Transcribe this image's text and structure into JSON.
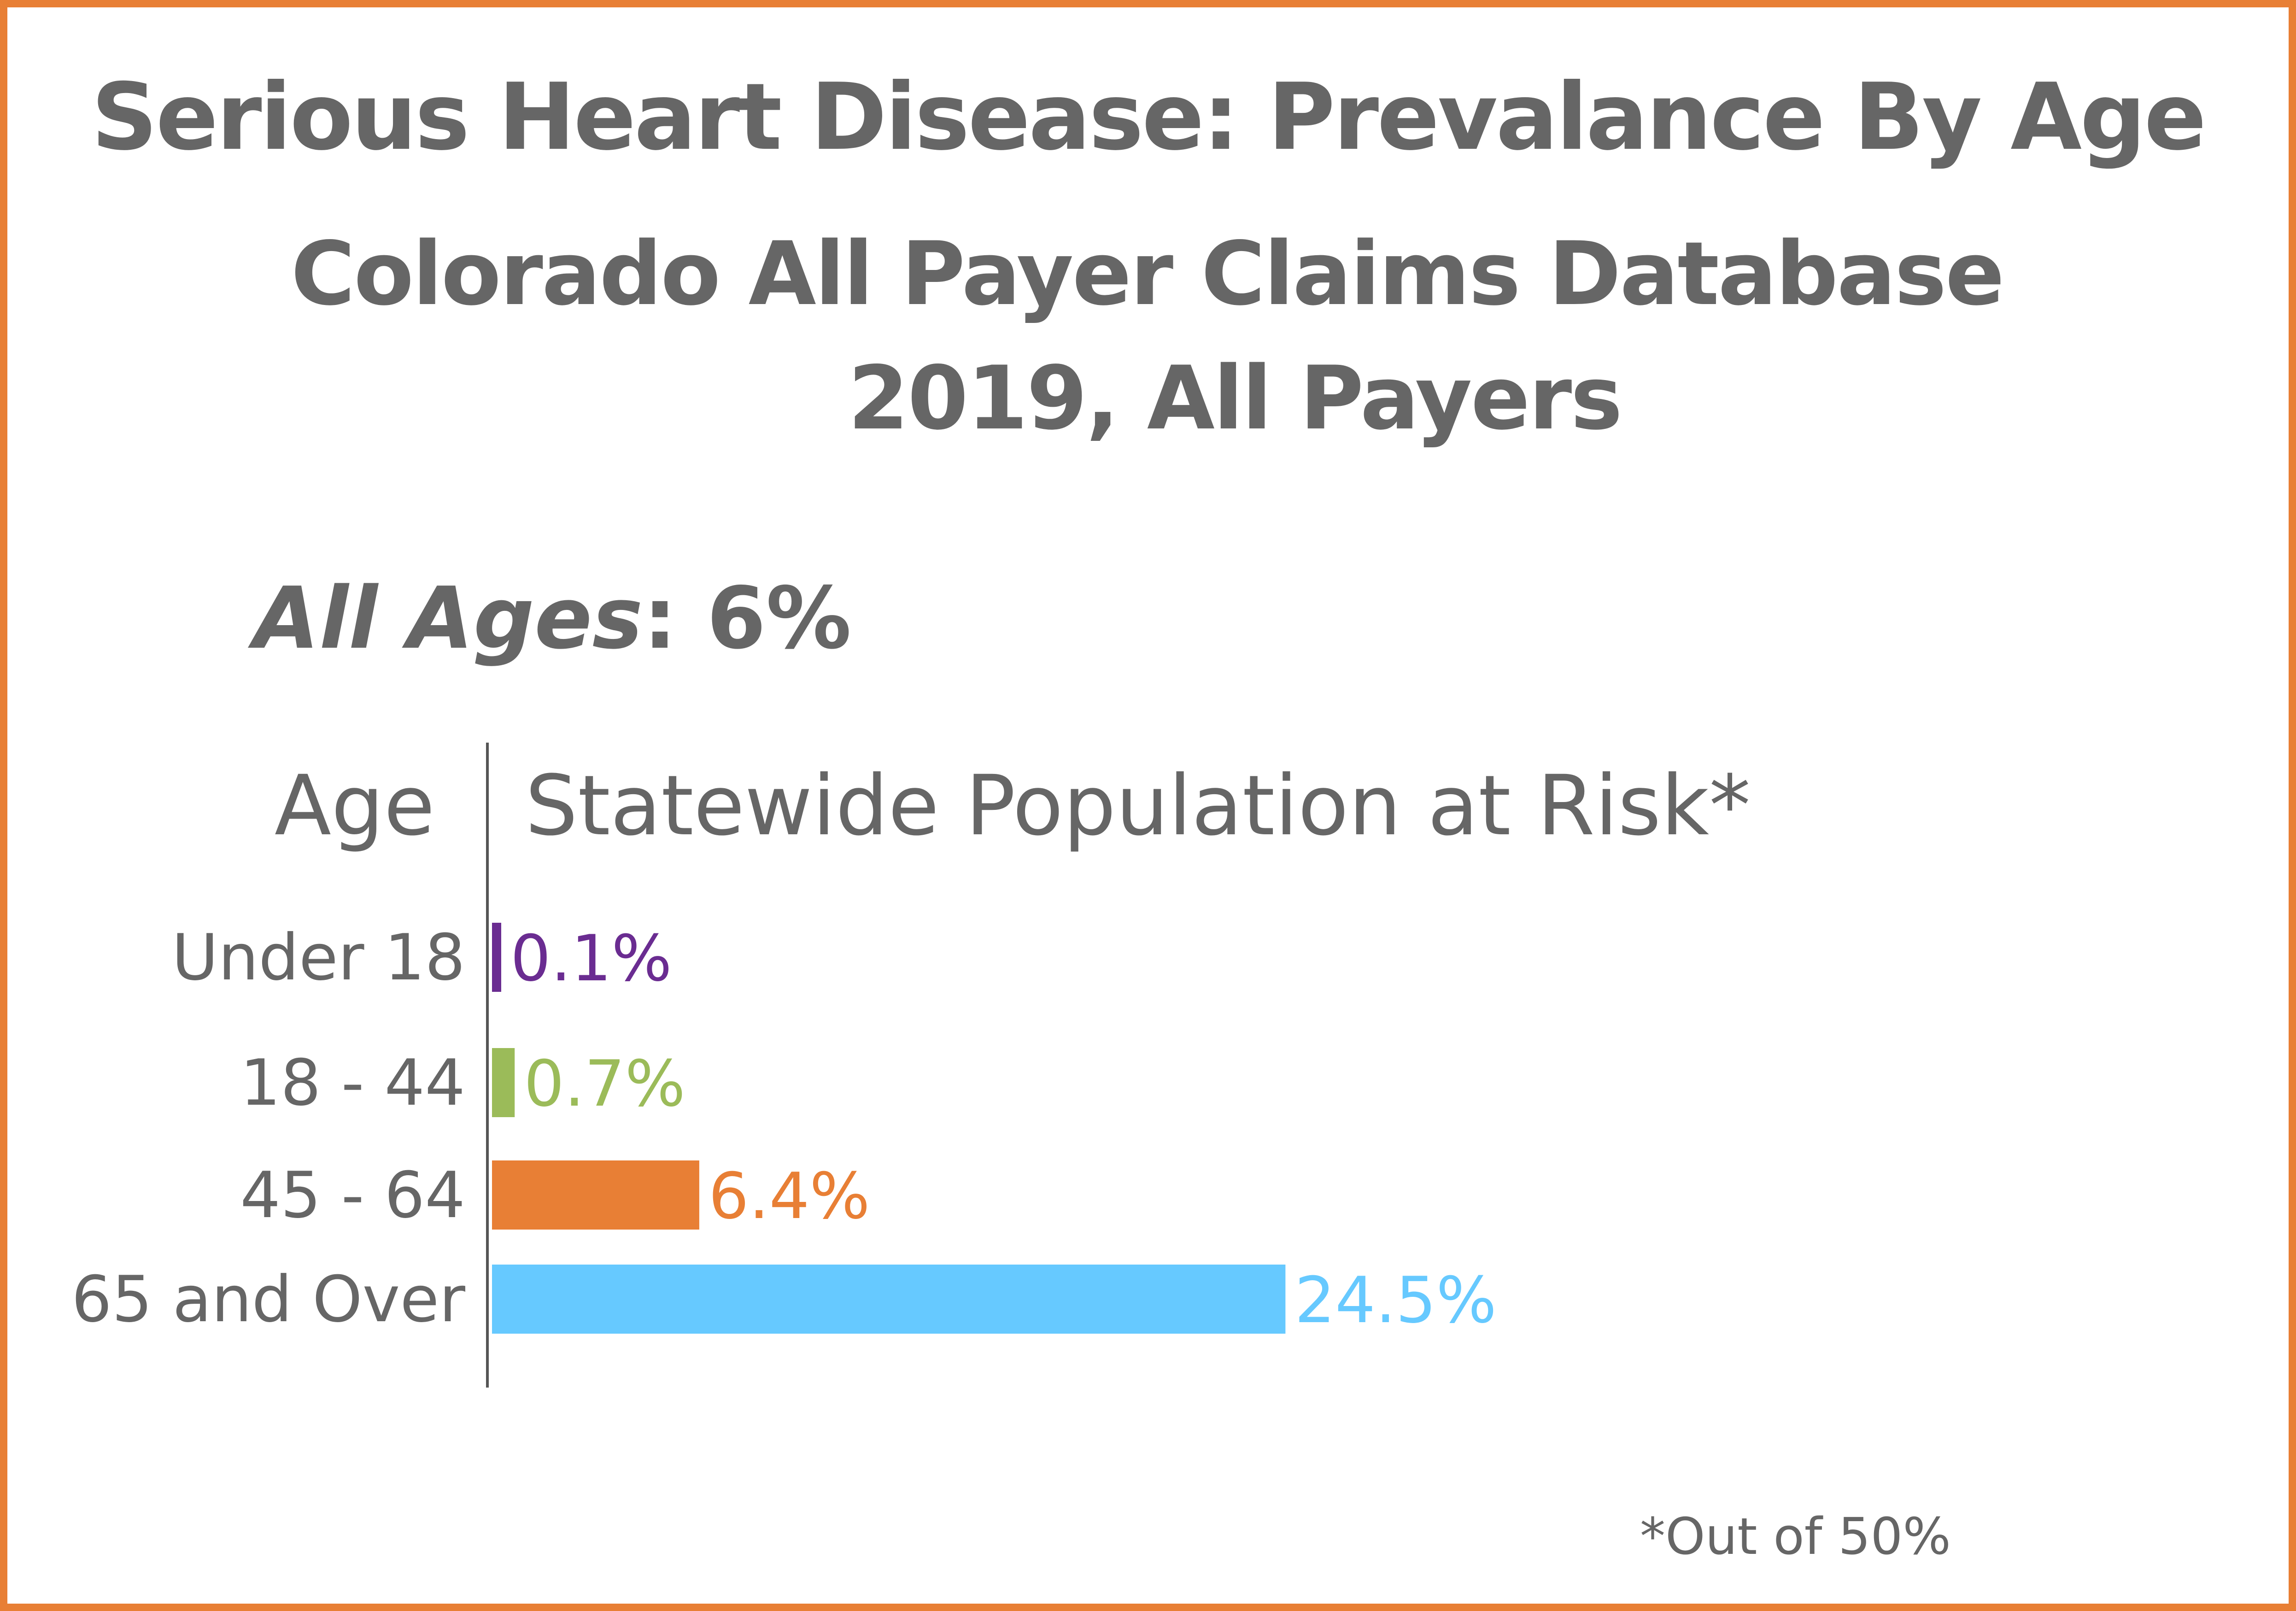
{
  "chart_data": {
    "type": "bar",
    "orientation": "horizontal",
    "title": "Serious Heart Disease: Prevalance By Age",
    "subtitle": "Colorado All Payer Claims Database",
    "subtitle2": "2019, All Payers",
    "summary": {
      "label": "All Ages",
      "value": "6%"
    },
    "category_header": "Age",
    "value_header": "Statewide Population at Risk*",
    "categories": [
      "Under 18",
      "18 - 44",
      "45 - 64",
      "65 and Over"
    ],
    "values": [
      0.1,
      0.7,
      6.4,
      24.5
    ],
    "value_labels": [
      "0.1%",
      "0.7%",
      "6.4%",
      "24.5%"
    ],
    "colors": [
      "#6a2c91",
      "#9bbb59",
      "#e87f35",
      "#66c9ff"
    ],
    "xlim": [
      0,
      50
    ],
    "footnote": "*Out of 50%",
    "grid": false
  },
  "theme": {
    "frame_color": "#e87f35",
    "text_color": "#666666"
  }
}
